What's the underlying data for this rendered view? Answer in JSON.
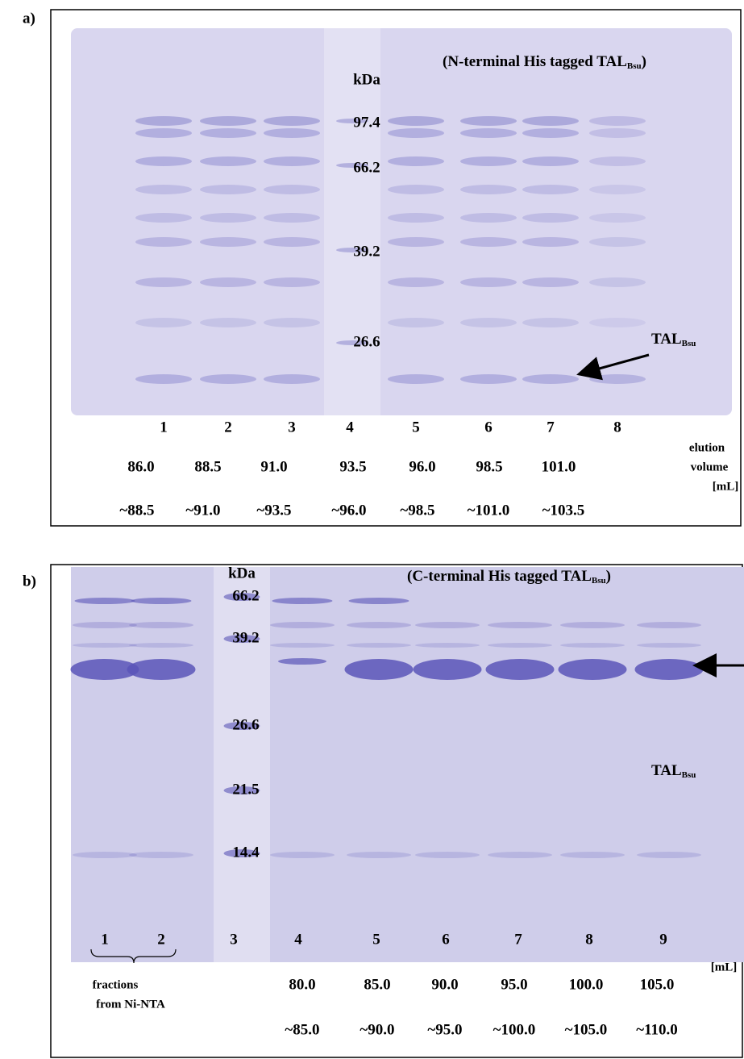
{
  "panels": [
    {
      "label": "a)",
      "title": {
        "prefix": "(N-terminal His tagged TAL",
        "sub": "Bsu",
        "suffix": ")"
      },
      "unit": "kDa",
      "markers": [
        "97.4",
        "66.2",
        "39.2",
        "26.6"
      ],
      "band_label": {
        "text": "TAL",
        "sub": "Bsu"
      },
      "lanes": [
        "1",
        "2",
        "3",
        "4",
        "5",
        "6",
        "7",
        "8"
      ],
      "volume_from": [
        "86.0",
        "88.5",
        "91.0",
        "93.5",
        "96.0",
        "98.5",
        "101.0"
      ],
      "volume_to": [
        "~88.5",
        "~91.0",
        "~93.5",
        "~96.0",
        "~98.5",
        "~101.0",
        "~103.5"
      ],
      "axis_label": [
        "elution",
        "volume",
        "[mL]"
      ]
    },
    {
      "label": "b)",
      "title": {
        "prefix": "(C-terminal His tagged TAL",
        "sub": "Bsu",
        "suffix": ")"
      },
      "unit": "kDa",
      "markers": [
        "66.2",
        "39.2",
        "26.6",
        "21.5",
        "14.4"
      ],
      "band_label": {
        "text": "TAL",
        "sub": "Bsu"
      },
      "lanes": [
        "1",
        "2",
        "3",
        "4",
        "5",
        "6",
        "7",
        "8",
        "9"
      ],
      "volume_from": [
        "80.0",
        "85.0",
        "90.0",
        "95.0",
        "100.0",
        "105.0"
      ],
      "volume_to": [
        "~85.0",
        "~90.0",
        "~95.0",
        "~100.0",
        "~105.0",
        "~110.0"
      ],
      "axis_label": [
        "[mL]"
      ],
      "fraction_note": [
        "fractions",
        "from Ni-NTA"
      ]
    }
  ]
}
